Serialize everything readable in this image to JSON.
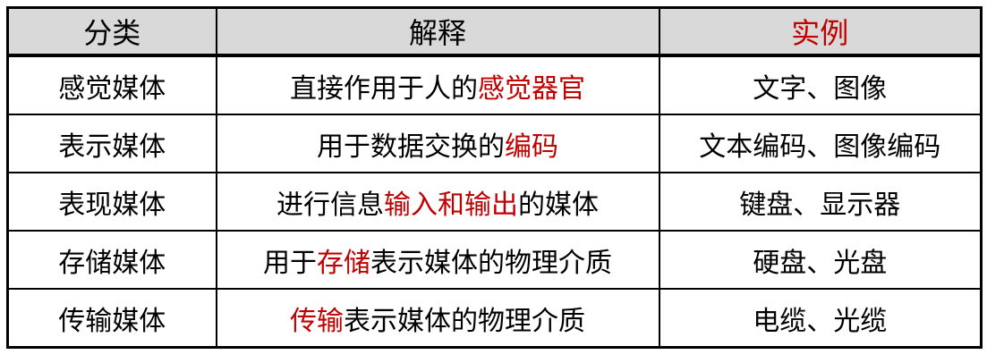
{
  "colors": {
    "accent_red": "#C00000",
    "header_bg": "#D9D9D9",
    "border": "#000000",
    "text": "#000000"
  },
  "table": {
    "headers": [
      {
        "label": "分类",
        "red": false
      },
      {
        "label": "解释",
        "red": false
      },
      {
        "label": "实例",
        "red": true
      }
    ],
    "rows": [
      {
        "category": "感觉媒体",
        "explanation": [
          {
            "text": "直接作用于人的",
            "red": false
          },
          {
            "text": "感觉器官",
            "red": true
          }
        ],
        "examples": "文字、图像"
      },
      {
        "category": "表示媒体",
        "explanation": [
          {
            "text": "用于数据交换的",
            "red": false
          },
          {
            "text": "编码",
            "red": true
          }
        ],
        "examples": "文本编码、图像编码"
      },
      {
        "category": "表现媒体",
        "explanation": [
          {
            "text": "进行信息",
            "red": false
          },
          {
            "text": "输入和输出",
            "red": true
          },
          {
            "text": "的媒体",
            "red": false
          }
        ],
        "examples": "键盘、显示器"
      },
      {
        "category": "存储媒体",
        "explanation": [
          {
            "text": "用于",
            "red": false
          },
          {
            "text": "存储",
            "red": true
          },
          {
            "text": "表示媒体的物理介质",
            "red": false
          }
        ],
        "examples": "硬盘、光盘"
      },
      {
        "category": "传输媒体",
        "explanation": [
          {
            "text": "传输",
            "red": true
          },
          {
            "text": "表示媒体的物理介质",
            "red": false
          }
        ],
        "examples": "电缆、光缆"
      }
    ]
  }
}
